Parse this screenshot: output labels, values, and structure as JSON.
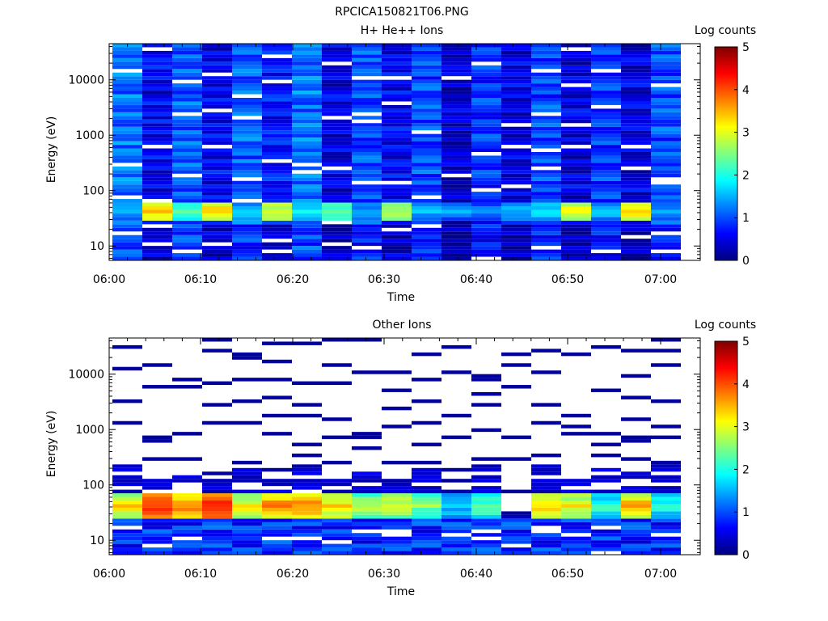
{
  "figure": {
    "title": "RPCICA150821T06.PNG"
  },
  "colorscale": {
    "stops": [
      "#00007f",
      "#0000ff",
      "#007fff",
      "#00ffff",
      "#7fff7f",
      "#ffff00",
      "#ff7f00",
      "#ff0000",
      "#7f0000"
    ]
  },
  "chart_data": [
    {
      "type": "heatmap",
      "title": "H+ He++ Ions",
      "xlabel": "Time",
      "ylabel": "Energy (eV)",
      "y_scale": "log",
      "ylim": [
        5.5,
        45000
      ],
      "x_ticks": [
        "06:00",
        "06:10",
        "06:20",
        "06:30",
        "06:40",
        "06:50",
        "07:00"
      ],
      "y_ticks": [
        {
          "value": 10,
          "label": "10"
        },
        {
          "value": 100,
          "label": "100"
        },
        {
          "value": 1000,
          "label": "1000"
        },
        {
          "value": 10000,
          "label": "10000"
        }
      ],
      "colorbar": {
        "label": "Log counts",
        "range": [
          0,
          5
        ],
        "ticks": [
          "0",
          "1",
          "2",
          "3",
          "4",
          "5"
        ]
      },
      "time_columns": [
        "06:00",
        "06:03",
        "06:07",
        "06:10",
        "06:14",
        "06:17",
        "06:20",
        "06:24",
        "06:27",
        "06:31",
        "06:34",
        "06:37",
        "06:41",
        "06:44",
        "06:48",
        "06:51",
        "06:54",
        "06:58",
        "07:01"
      ],
      "dominant_energy_band_eV": [
        30,
        60
      ],
      "peak_log_counts": [
        1.6,
        3.4,
        2.2,
        3.3,
        1.7,
        3.0,
        1.8,
        2.4,
        1.5,
        2.8,
        1.6,
        1.4,
        1.3,
        1.5,
        1.8,
        3.1,
        1.6,
        3.2,
        1.5
      ],
      "background_log_counts": [
        1.2,
        0.6,
        1.1,
        0.6,
        1.1,
        0.7,
        1.2,
        0.5,
        1.0,
        0.6,
        1.0,
        0.4,
        0.9,
        0.5,
        1.0,
        0.5,
        0.9,
        0.5,
        1.0
      ]
    },
    {
      "type": "heatmap",
      "title": "Other Ions",
      "xlabel": "Time",
      "ylabel": "Energy (eV)",
      "y_scale": "log",
      "ylim": [
        5.5,
        45000
      ],
      "x_ticks": [
        "06:00",
        "06:10",
        "06:20",
        "06:30",
        "06:40",
        "06:50",
        "07:00"
      ],
      "y_ticks": [
        {
          "value": 10,
          "label": "10"
        },
        {
          "value": 100,
          "label": "100"
        },
        {
          "value": 1000,
          "label": "1000"
        },
        {
          "value": 10000,
          "label": "10000"
        }
      ],
      "colorbar": {
        "label": "Log counts",
        "range": [
          0,
          5
        ],
        "ticks": [
          "0",
          "1",
          "2",
          "3",
          "4",
          "5"
        ]
      },
      "time_columns": [
        "06:00",
        "06:03",
        "06:07",
        "06:10",
        "06:14",
        "06:17",
        "06:20",
        "06:24",
        "06:27",
        "06:31",
        "06:34",
        "06:37",
        "06:41",
        "06:44",
        "06:48",
        "06:51",
        "06:54",
        "06:58",
        "07:01"
      ],
      "dominant_energy_band_eV": [
        25,
        70
      ],
      "peak_log_counts": [
        3.3,
        4.2,
        3.8,
        4.3,
        3.2,
        3.7,
        3.8,
        3.3,
        2.8,
        3.0,
        2.6,
        1.8,
        2.4,
        1.0,
        3.3,
        3.2,
        2.2,
        3.5,
        2.1
      ],
      "upper_energy_limit_eV": [
        220,
        130,
        210,
        140,
        220,
        130,
        230,
        140,
        200,
        130,
        200,
        80,
        220,
        30,
        220,
        130,
        210,
        180,
        220
      ]
    }
  ]
}
